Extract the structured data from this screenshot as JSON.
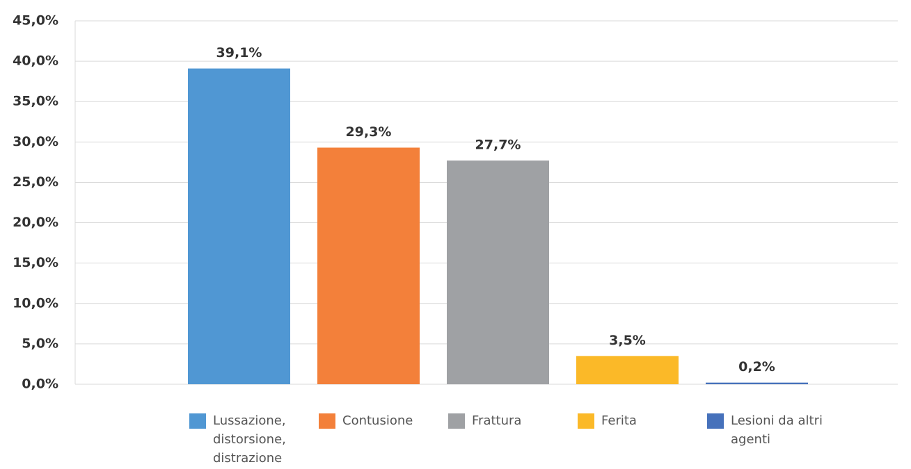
{
  "chart_data": {
    "type": "bar",
    "series": [
      {
        "name": "Lussazione, distorsione, distrazione",
        "color": "#5097d3",
        "values": [
          39.1
        ],
        "value_labels": [
          "39,1%"
        ]
      },
      {
        "name": "Contusione",
        "color": "#f3803a",
        "values": [
          29.3
        ],
        "value_labels": [
          "29,3%"
        ]
      },
      {
        "name": "Frattura",
        "color": "#9fa1a4",
        "values": [
          27.7
        ],
        "value_labels": [
          "27,7%"
        ]
      },
      {
        "name": "Ferita",
        "color": "#fbb928",
        "values": [
          3.5
        ],
        "value_labels": [
          "3,5%"
        ]
      },
      {
        "name": "Lesioni da altri agenti",
        "color": "#4671bb",
        "values": [
          0.2
        ],
        "value_labels": [
          "0,2%"
        ]
      }
    ],
    "ylim": [
      0,
      45
    ],
    "yticks": [
      {
        "value": 0,
        "label": "0,0%"
      },
      {
        "value": 5,
        "label": "5,0%"
      },
      {
        "value": 10,
        "label": "10,0%"
      },
      {
        "value": 15,
        "label": "15,0%"
      },
      {
        "value": 20,
        "label": "20,0%"
      },
      {
        "value": 25,
        "label": "25,0%"
      },
      {
        "value": 30,
        "label": "30,0%"
      },
      {
        "value": 35,
        "label": "35,0%"
      },
      {
        "value": 40,
        "label": "40,0%"
      },
      {
        "value": 45,
        "label": "45,0%"
      }
    ],
    "grid": true,
    "legend": "bottom"
  }
}
